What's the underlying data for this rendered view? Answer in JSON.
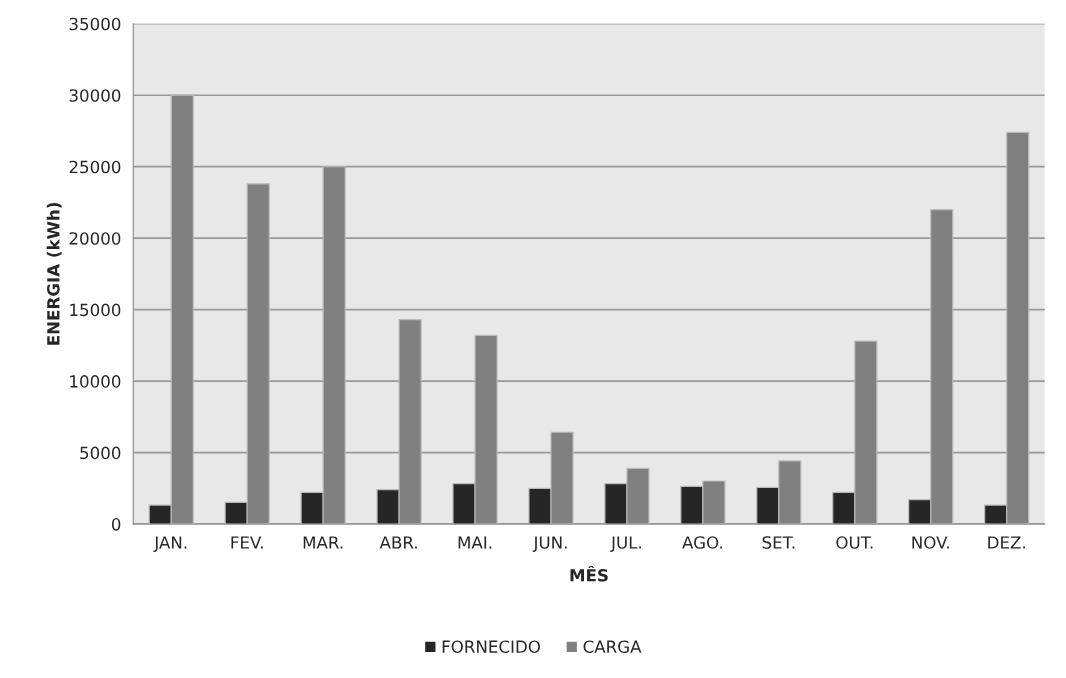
{
  "chart_data": {
    "type": "bar",
    "xlabel": "MÊS",
    "ylabel": "ENERGIA (kWh)",
    "categories": [
      "JAN.",
      "FEV.",
      "MAR.",
      "ABR.",
      "MAI.",
      "JUN.",
      "JUL.",
      "AGO.",
      "SET.",
      "OUT.",
      "NOV.",
      "DEZ."
    ],
    "series": [
      {
        "name": "FORNECIDO",
        "color": "#262626",
        "values": [
          1330,
          1520,
          2220,
          2410,
          2830,
          2500,
          2830,
          2640,
          2570,
          2220,
          1710,
          1330
        ]
      },
      {
        "name": "CARGA",
        "color": "#808080",
        "values": [
          30000,
          23800,
          25000,
          14300,
          13200,
          6420,
          3900,
          3010,
          4420,
          12800,
          22000,
          27400
        ]
      }
    ],
    "ylim": [
      0,
      35000
    ],
    "yticks": [
      0,
      5000,
      10000,
      15000,
      20000,
      25000,
      30000,
      35000
    ],
    "grid": "y",
    "legend": "bottom"
  }
}
